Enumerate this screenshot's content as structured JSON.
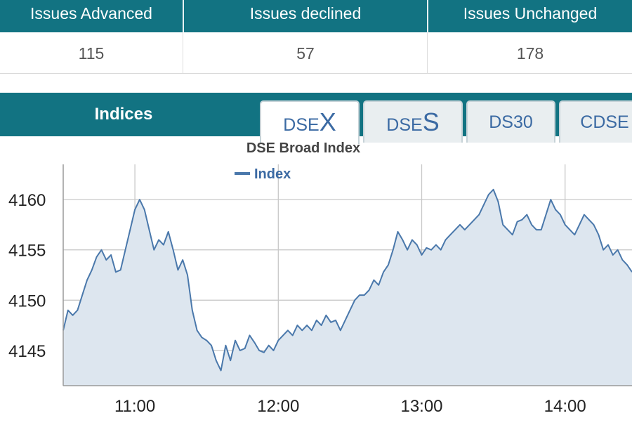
{
  "stats": {
    "headers": [
      "Issues Advanced",
      "Issues declined",
      "Issues Unchanged"
    ],
    "values": [
      "115",
      "57",
      "178"
    ]
  },
  "indices": {
    "title": "Indices",
    "tabs": [
      {
        "prefix": "DSE",
        "suffix": "X",
        "active": true
      },
      {
        "prefix": "DSE",
        "suffix": "S",
        "active": false
      },
      {
        "prefix": "DS30",
        "suffix": "",
        "active": false
      },
      {
        "prefix": "CDSE",
        "suffix": "",
        "active": false
      }
    ]
  },
  "colors": {
    "header_bg": "#127382",
    "line": "#4a78ab",
    "area": "#dde6ef",
    "tab_text": "#3b6aa3"
  },
  "chart_data": {
    "type": "area",
    "title": "DSE Broad Index",
    "legend": "Index",
    "legend_position": "top-left",
    "grid": true,
    "xlabel": "",
    "ylabel": "",
    "x_ticks": [
      "11:00",
      "12:00",
      "13:00",
      "14:00"
    ],
    "y_ticks": [
      4145,
      4150,
      4155,
      4160
    ],
    "xlim": [
      "10:30",
      "14:28"
    ],
    "ylim": [
      4141.5,
      4163.5
    ],
    "series": [
      {
        "name": "Index",
        "points": [
          [
            "10:30",
            4147.0
          ],
          [
            "10:32",
            4149.0
          ],
          [
            "10:34",
            4148.5
          ],
          [
            "10:36",
            4149.0
          ],
          [
            "10:38",
            4150.5
          ],
          [
            "10:40",
            4152.0
          ],
          [
            "10:42",
            4153.0
          ],
          [
            "10:44",
            4154.3
          ],
          [
            "10:46",
            4155.0
          ],
          [
            "10:48",
            4154.0
          ],
          [
            "10:50",
            4154.5
          ],
          [
            "10:52",
            4152.8
          ],
          [
            "10:54",
            4153.0
          ],
          [
            "10:56",
            4155.0
          ],
          [
            "10:58",
            4157.0
          ],
          [
            "11:00",
            4159.0
          ],
          [
            "11:02",
            4160.0
          ],
          [
            "11:04",
            4159.0
          ],
          [
            "11:06",
            4157.0
          ],
          [
            "11:08",
            4155.0
          ],
          [
            "11:10",
            4156.0
          ],
          [
            "11:12",
            4155.5
          ],
          [
            "11:14",
            4156.8
          ],
          [
            "11:16",
            4155.0
          ],
          [
            "11:18",
            4153.0
          ],
          [
            "11:20",
            4154.0
          ],
          [
            "11:22",
            4152.5
          ],
          [
            "11:24",
            4149.0
          ],
          [
            "11:26",
            4147.0
          ],
          [
            "11:28",
            4146.3
          ],
          [
            "11:30",
            4146.0
          ],
          [
            "11:32",
            4145.5
          ],
          [
            "11:34",
            4144.0
          ],
          [
            "11:36",
            4143.0
          ],
          [
            "11:38",
            4145.5
          ],
          [
            "11:40",
            4144.0
          ],
          [
            "11:42",
            4146.0
          ],
          [
            "11:44",
            4145.0
          ],
          [
            "11:46",
            4145.2
          ],
          [
            "11:48",
            4146.5
          ],
          [
            "11:50",
            4145.8
          ],
          [
            "11:52",
            4145.0
          ],
          [
            "11:54",
            4144.8
          ],
          [
            "11:56",
            4145.5
          ],
          [
            "11:58",
            4145.0
          ],
          [
            "12:00",
            4146.0
          ],
          [
            "12:02",
            4146.5
          ],
          [
            "12:04",
            4147.0
          ],
          [
            "12:06",
            4146.5
          ],
          [
            "12:08",
            4147.5
          ],
          [
            "12:10",
            4147.0
          ],
          [
            "12:12",
            4147.5
          ],
          [
            "12:14",
            4147.0
          ],
          [
            "12:16",
            4148.0
          ],
          [
            "12:18",
            4147.5
          ],
          [
            "12:20",
            4148.5
          ],
          [
            "12:22",
            4147.8
          ],
          [
            "12:24",
            4148.0
          ],
          [
            "12:26",
            4147.0
          ],
          [
            "12:28",
            4148.0
          ],
          [
            "12:30",
            4149.0
          ],
          [
            "12:32",
            4150.0
          ],
          [
            "12:34",
            4150.5
          ],
          [
            "12:36",
            4150.5
          ],
          [
            "12:38",
            4151.0
          ],
          [
            "12:40",
            4152.0
          ],
          [
            "12:42",
            4151.5
          ],
          [
            "12:44",
            4152.8
          ],
          [
            "12:46",
            4153.5
          ],
          [
            "12:48",
            4155.0
          ],
          [
            "12:50",
            4156.8
          ],
          [
            "12:52",
            4156.0
          ],
          [
            "12:54",
            4155.0
          ],
          [
            "12:56",
            4156.0
          ],
          [
            "12:58",
            4155.5
          ],
          [
            "13:00",
            4154.5
          ],
          [
            "13:02",
            4155.2
          ],
          [
            "13:04",
            4155.0
          ],
          [
            "13:06",
            4155.5
          ],
          [
            "13:08",
            4155.0
          ],
          [
            "13:10",
            4156.0
          ],
          [
            "13:12",
            4156.5
          ],
          [
            "13:14",
            4157.0
          ],
          [
            "13:16",
            4157.5
          ],
          [
            "13:18",
            4157.0
          ],
          [
            "13:20",
            4157.5
          ],
          [
            "13:22",
            4158.0
          ],
          [
            "13:24",
            4158.5
          ],
          [
            "13:26",
            4159.5
          ],
          [
            "13:28",
            4160.5
          ],
          [
            "13:30",
            4161.0
          ],
          [
            "13:32",
            4159.8
          ],
          [
            "13:34",
            4157.5
          ],
          [
            "13:36",
            4157.0
          ],
          [
            "13:38",
            4156.5
          ],
          [
            "13:40",
            4157.8
          ],
          [
            "13:42",
            4158.0
          ],
          [
            "13:44",
            4158.5
          ],
          [
            "13:46",
            4157.5
          ],
          [
            "13:48",
            4157.0
          ],
          [
            "13:50",
            4157.0
          ],
          [
            "13:52",
            4158.5
          ],
          [
            "13:54",
            4160.0
          ],
          [
            "13:56",
            4159.0
          ],
          [
            "13:58",
            4158.5
          ],
          [
            "14:00",
            4157.5
          ],
          [
            "14:02",
            4157.0
          ],
          [
            "14:04",
            4156.5
          ],
          [
            "14:06",
            4157.5
          ],
          [
            "14:08",
            4158.5
          ],
          [
            "14:10",
            4158.0
          ],
          [
            "14:12",
            4157.5
          ],
          [
            "14:14",
            4156.5
          ],
          [
            "14:16",
            4155.0
          ],
          [
            "14:18",
            4155.5
          ],
          [
            "14:20",
            4154.5
          ],
          [
            "14:22",
            4155.0
          ],
          [
            "14:24",
            4154.0
          ],
          [
            "14:26",
            4153.5
          ],
          [
            "14:28",
            4152.8
          ]
        ]
      }
    ]
  }
}
